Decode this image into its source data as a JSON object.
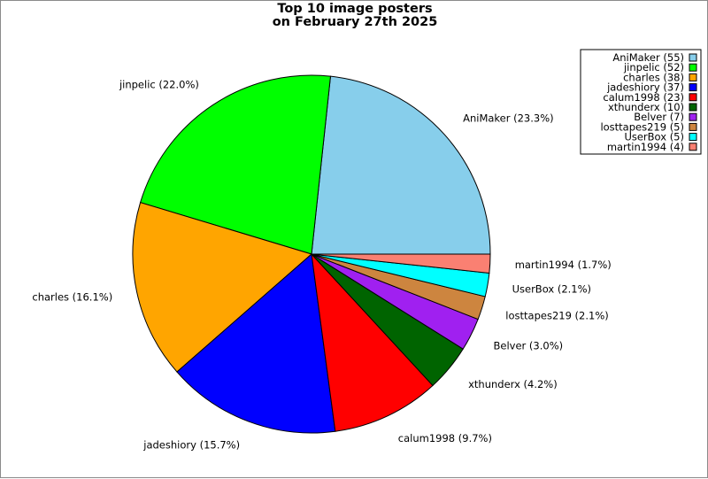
{
  "chart_data": {
    "type": "pie",
    "title": [
      "Top 10 image posters",
      "on February 27th 2025"
    ],
    "legend_position": "top-right",
    "slices": [
      {
        "name": "AniMaker",
        "count": 55,
        "percent_label": "23.3%",
        "color": "#87ceeb"
      },
      {
        "name": "jinpelic",
        "count": 52,
        "percent_label": "22.0%",
        "color": "#00ff00"
      },
      {
        "name": "charles",
        "count": 38,
        "percent_label": "16.1%",
        "color": "#ffa500"
      },
      {
        "name": "jadeshiory",
        "count": 37,
        "percent_label": "15.7%",
        "color": "#0000ff"
      },
      {
        "name": "calum1998",
        "count": 23,
        "percent_label": "9.7%",
        "color": "#ff0000"
      },
      {
        "name": "xthunderx",
        "count": 10,
        "percent_label": "4.2%",
        "color": "#006400"
      },
      {
        "name": "Belver",
        "count": 7,
        "percent_label": "3.0%",
        "color": "#a020f0"
      },
      {
        "name": "losttapes219",
        "count": 5,
        "percent_label": "2.1%",
        "color": "#cd853f"
      },
      {
        "name": "UserBox",
        "count": 5,
        "percent_label": "2.1%",
        "color": "#00ffff"
      },
      {
        "name": "martin1994",
        "count": 4,
        "percent_label": "1.7%",
        "color": "#fa8072"
      }
    ]
  }
}
